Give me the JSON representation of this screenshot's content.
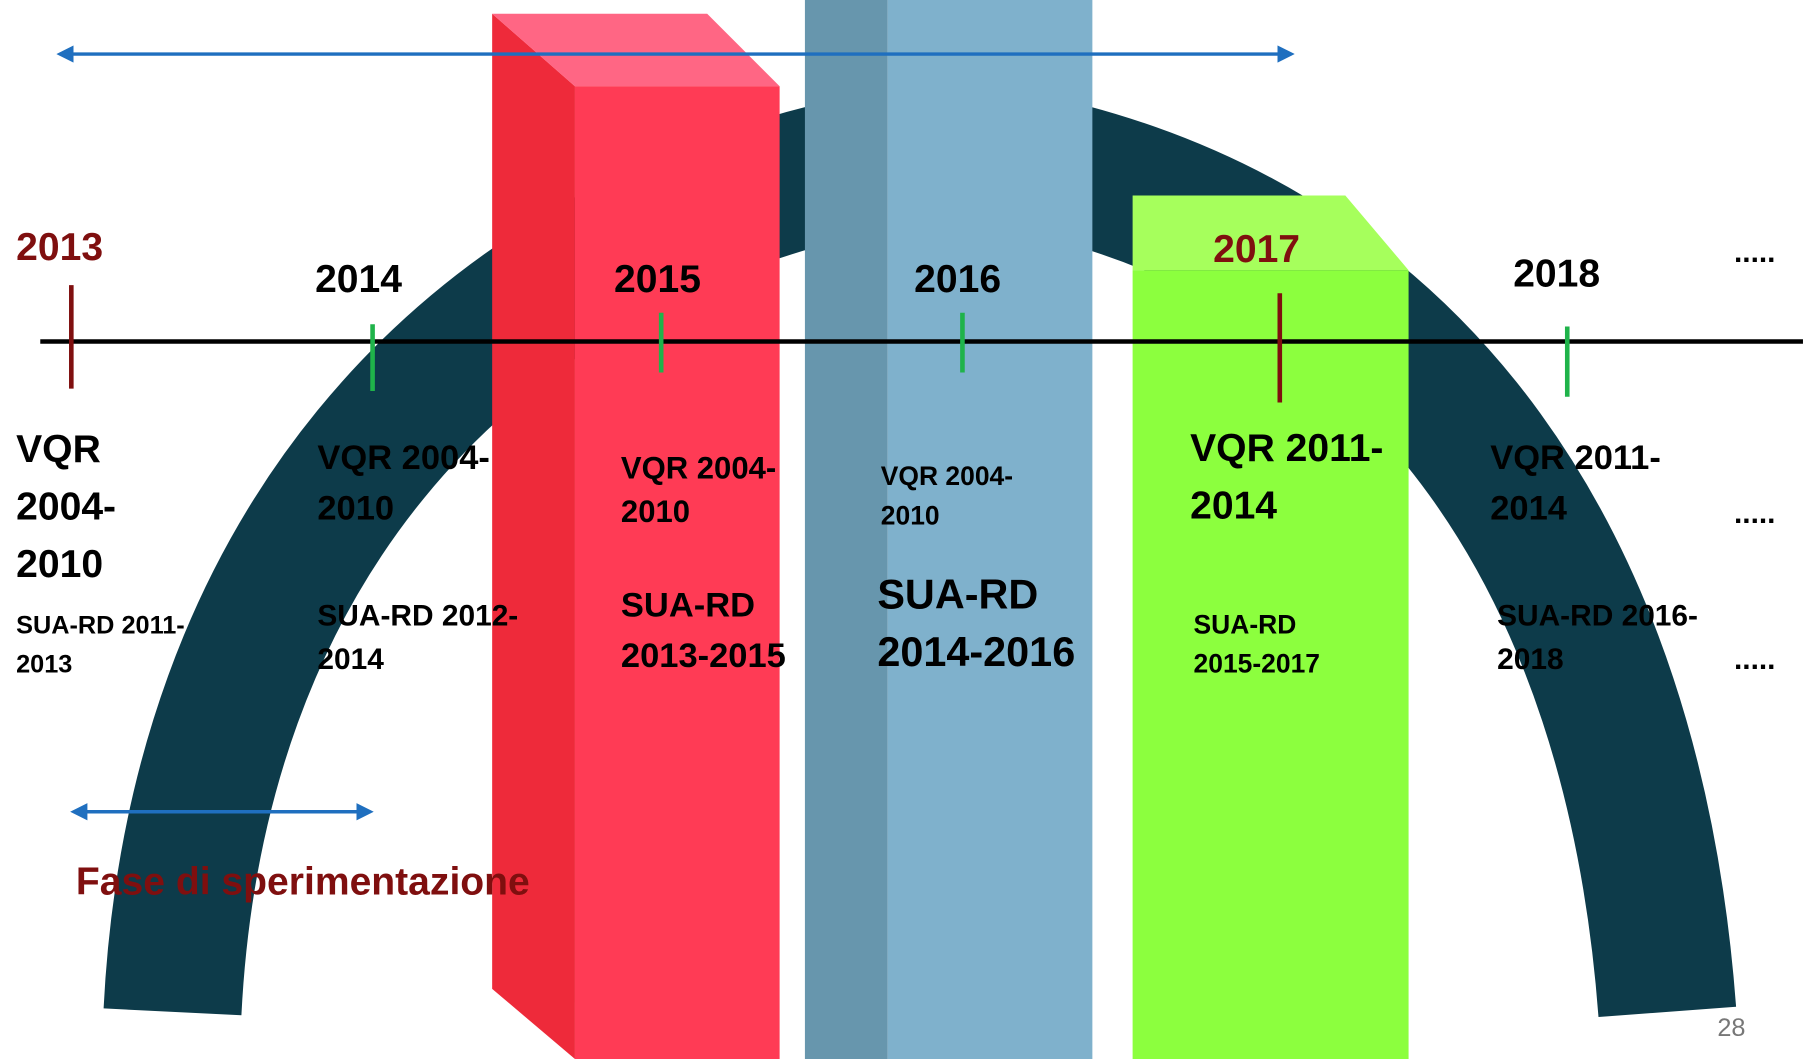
{
  "timeline": {
    "columns": [
      {
        "year": "2013",
        "vqr": [
          "VQR",
          "2004-",
          "2010"
        ],
        "sua": [
          "SUA-RD 2011-",
          "2013"
        ]
      },
      {
        "year": "2014",
        "vqr": [
          "VQR 2004-",
          "2010"
        ],
        "sua": [
          "SUA-RD 2012-",
          "2014"
        ]
      },
      {
        "year": "2015",
        "vqr": [
          "VQR 2004-",
          "2010"
        ],
        "sua": [
          "SUA-RD",
          "2013-2015"
        ]
      },
      {
        "year": "2016",
        "vqr": [
          "VQR 2004-",
          "2010"
        ],
        "sua": [
          "SUA-RD",
          "2014-2016"
        ]
      },
      {
        "year": "2017",
        "vqr": [
          "VQR 2011-",
          "2014"
        ],
        "sua": [
          "SUA-RD",
          "2015-2017"
        ]
      },
      {
        "year": "2018",
        "vqr": [
          "VQR 2011-",
          "2014"
        ],
        "sua": [
          "SUA-RD 2016-",
          "2018"
        ]
      }
    ],
    "continuation": [
      ".....",
      ".....",
      "....."
    ],
    "phase_label": "Fase di sperimentazione",
    "page_number": "28"
  }
}
